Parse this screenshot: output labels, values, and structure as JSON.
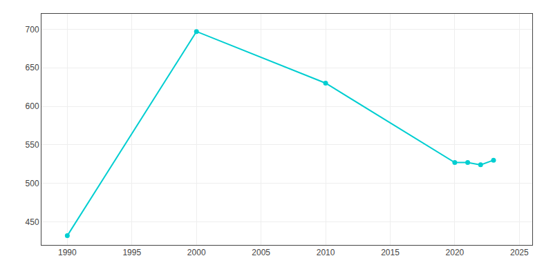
{
  "chart_data": {
    "type": "line",
    "x": [
      1990,
      2000,
      2010,
      2020,
      2021,
      2022,
      2023
    ],
    "values": [
      432,
      697,
      630,
      527,
      527,
      524,
      530
    ],
    "color": "#00CED1",
    "marker": "circle",
    "line_style": "solid",
    "xlim": [
      1988,
      2026
    ],
    "ylim": [
      420,
      720
    ],
    "xticks": [
      1990,
      1995,
      2000,
      2005,
      2010,
      2015,
      2020,
      2025
    ],
    "yticks": [
      450,
      500,
      550,
      600,
      650,
      700
    ],
    "grid": true
  }
}
